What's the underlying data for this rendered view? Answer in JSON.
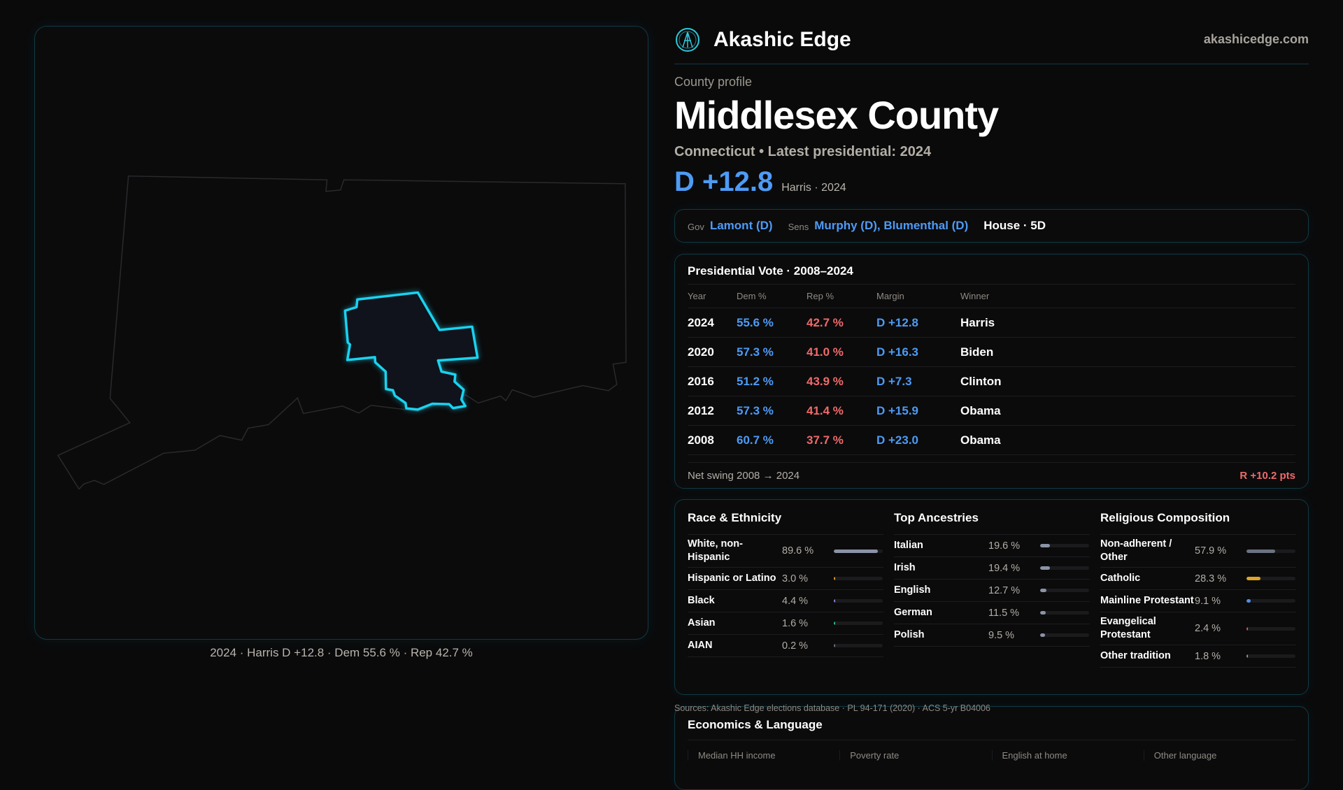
{
  "map": {
    "caption": "2024 · Harris D +12.8 · Dem 55.6 % · Rep 42.7 %",
    "highlight_color": "#19d3f0"
  },
  "header": {
    "brand": "Akashic Edge",
    "site": "akashicedge.com",
    "logo_icon": "akashic-edge-logo-icon"
  },
  "profile": {
    "kicker": "County profile",
    "title": "Middlesex County",
    "subtitle": "Connecticut • Latest presidential: 2024",
    "margin": "D +12.8",
    "margin_note": "Harris · 2024"
  },
  "officials": {
    "gov_label": "Gov",
    "gov": "Lamont (D)",
    "sens_label": "Sens",
    "sens": "Murphy (D), Blumenthal (D)",
    "house": "House · 5D"
  },
  "presidential": {
    "title": "Presidential Vote · 2008–2024",
    "columns": [
      "Year",
      "Dem %",
      "Rep %",
      "Margin",
      "Winner"
    ],
    "rows": [
      {
        "year": "2024",
        "dem": "55.6 %",
        "rep": "42.7 %",
        "margin": "D +12.8",
        "winner": "Harris"
      },
      {
        "year": "2020",
        "dem": "57.3 %",
        "rep": "41.0 %",
        "margin": "D +16.3",
        "winner": "Biden"
      },
      {
        "year": "2016",
        "dem": "51.2 %",
        "rep": "43.9 %",
        "margin": "D +7.3",
        "winner": "Clinton"
      },
      {
        "year": "2012",
        "dem": "57.3 %",
        "rep": "41.4 %",
        "margin": "D +15.9",
        "winner": "Obama"
      },
      {
        "year": "2008",
        "dem": "60.7 %",
        "rep": "37.7 %",
        "margin": "D +23.0",
        "winner": "Obama"
      }
    ],
    "swing_label": "Net swing 2008 → 2024",
    "swing_value": "R +10.2 pts"
  },
  "demographics": [
    {
      "title": "Race & Ethnicity",
      "items": [
        {
          "name": "White, non-Hispanic",
          "pct": "89.6 %",
          "value": 89.6,
          "color": "#8b93a7"
        },
        {
          "name": "Hispanic or Latino",
          "pct": "3.0 %",
          "value": 3.0,
          "color": "#e39a2a"
        },
        {
          "name": "Black",
          "pct": "4.4 %",
          "value": 4.4,
          "color": "#9b7be0"
        },
        {
          "name": "Asian",
          "pct": "1.6 %",
          "value": 1.6,
          "color": "#2fbf8f"
        },
        {
          "name": "AIAN",
          "pct": "0.2 %",
          "value": 0.2,
          "color": "#6b7280"
        }
      ]
    },
    {
      "title": "Top Ancestries",
      "items": [
        {
          "name": "Italian",
          "pct": "19.6 %",
          "value": 19.6,
          "color": "#8b93a7"
        },
        {
          "name": "Irish",
          "pct": "19.4 %",
          "value": 19.4,
          "color": "#8b93a7"
        },
        {
          "name": "English",
          "pct": "12.7 %",
          "value": 12.7,
          "color": "#8b93a7"
        },
        {
          "name": "German",
          "pct": "11.5 %",
          "value": 11.5,
          "color": "#8b93a7"
        },
        {
          "name": "Polish",
          "pct": "9.5 %",
          "value": 9.5,
          "color": "#8b93a7"
        }
      ]
    },
    {
      "title": "Religious Composition",
      "items": [
        {
          "name": "Non-adherent / Other",
          "pct": "57.9 %",
          "value": 57.9,
          "color": "#6b7280"
        },
        {
          "name": "Catholic",
          "pct": "28.3 %",
          "value": 28.3,
          "color": "#e0a526"
        },
        {
          "name": "Mainline Protestant",
          "pct": "9.1 %",
          "value": 9.1,
          "color": "#4f8fe6"
        },
        {
          "name": "Evangelical Protestant",
          "pct": "2.4 %",
          "value": 2.4,
          "color": "#e05555"
        },
        {
          "name": "Other tradition",
          "pct": "1.8 %",
          "value": 1.8,
          "color": "#8b93a7"
        }
      ]
    }
  ],
  "sources": "Sources: Akashic Edge elections database · PL 94-171 (2020) · ACS 5-yr B04006",
  "economics": {
    "title": "Economics & Language",
    "columns": [
      "Median HH income",
      "Poverty rate",
      "English at home",
      "Other language"
    ]
  }
}
